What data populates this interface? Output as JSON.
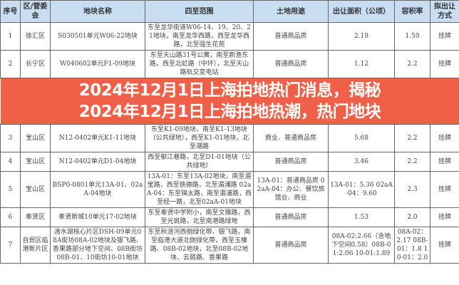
{
  "table": {
    "headers": [
      "序号",
      "区/管委会",
      "地块名称",
      "四至范围",
      "土地用途",
      "出让面积（公顷）",
      "容积率",
      "拟出让方式"
    ],
    "rows": [
      [
        "1",
        "徐汇区",
        "S030501单元W06-22地块",
        "东至龙华街道W06-14、19、20、21地块，南至龙华西路，西至龙华西路，北至强生花苑",
        "普通商品房",
        "2.19",
        "1.59",
        "挂牌"
      ],
      [
        "2",
        "长宁区",
        "W040602单元F1-09地块",
        "东至天山路31号公寓，南至新渔东路，西至北虹路（中环），北至天山路轨交变电站",
        "普通商品房",
        "1.12",
        "2.2",
        "挂牌"
      ],
      [
        "3",
        "宝山区",
        "N12-0402单元K1-11地块",
        "东至K1-09地块，南至K1-13地块（公共绿地），西至K1-01地块，北至潮路",
        "商业、普通商品房",
        "5.68",
        "2.2",
        "挂牌"
      ],
      [
        "4",
        "宝山区",
        "N12-0402单元D1-04地块",
        "西至郁江巷路，北至D1-01地块（公共绿地）",
        "普通商品房",
        "3.46",
        "2.2",
        "挂牌"
      ],
      [
        "5",
        "宝山区",
        "BSP0-0801单元13A-01、02aA-04地块",
        "13A-01：东至13A-02地块，南至湄宝路，西至铁德路，北至湄浦路 02aA-04：东至锦太路，南至湄浦路，西至经一路，北至02aA-01地块",
        "13A-01：普通商品房 02aA-04：办公、餐饮旅馆业、商业",
        "13A-01：5.36 02aA-04：9.60",
        "2.3",
        "挂牌"
      ],
      [
        "6",
        "奉贤区",
        "奉贤新城10单元17-02地块",
        "东至奉贤中学附小，南至文雅路，西至光斑路，北至南港路绿地",
        "普通商品房",
        "1.53",
        "2.0",
        "挂牌"
      ],
      [
        "7",
        "自贸区临港新片区",
        "滴水湖核心片区DSH-09单元08A街坊08A-02地块及银飞路、香果路部分地下空间、08B街坊08B-01、10街坊10-01地块",
        "东至秋涟河西侧绿化带、银飞路，南至临港大道北侧绿化带，西至玉榛路、08B-02地块，北至08B-02地块、云鹃路、香果路",
        "普通商品房",
        "08A-02:2.66（含地下空间0.58）08B-01:2.06 10-01:1.89",
        "08A-02：2.17 08B-01：1.8 10-01：2.0",
        "挂牌"
      ]
    ]
  },
  "banner": {
    "line1": "2024年12月1日上海拍地热门消息，揭秘",
    "line2": "2024年12月1日上海拍地热潮，热门地块",
    "color": "#f06048"
  }
}
